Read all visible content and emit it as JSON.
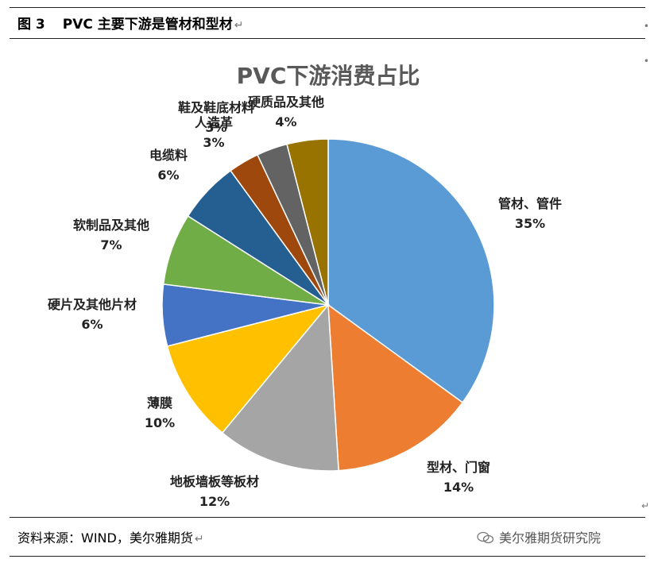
{
  "caption": {
    "figure_number": "图 3",
    "title": "PVC 主要下游是管材和型材",
    "return_mark": "↵"
  },
  "chart_data": {
    "type": "pie",
    "title": "PVC下游消费占比",
    "slices": [
      {
        "label": "管材、管件",
        "value": 35,
        "display": "35%",
        "color": "#5B9BD5"
      },
      {
        "label": "型材、门窗",
        "value": 14,
        "display": "14%",
        "color": "#ED7D31"
      },
      {
        "label": "地板墙板等板材",
        "value": 12,
        "display": "12%",
        "color": "#A5A5A5"
      },
      {
        "label": "薄膜",
        "value": 10,
        "display": "10%",
        "color": "#FFC000"
      },
      {
        "label": "硬片及其他片材",
        "value": 6,
        "display": "6%",
        "color": "#4472C4"
      },
      {
        "label": "软制品及其他",
        "value": 7,
        "display": "7%",
        "color": "#70AD47"
      },
      {
        "label": "电缆料",
        "value": 6,
        "display": "6%",
        "color": "#255E91"
      },
      {
        "label": "人造革",
        "value": 3,
        "display": "3%",
        "color": "#9E480E"
      },
      {
        "label": "鞋及鞋底材料",
        "value": 3,
        "display": "3%",
        "color": "#636363"
      },
      {
        "label": "硬质品及其他",
        "value": 4,
        "display": "4%",
        "color": "#997300"
      }
    ]
  },
  "footer": {
    "source": "资料来源：WIND，美尔雅期货",
    "return_mark": "↵",
    "brand": "美尔雅期货研究院",
    "brand_icon": "wechat-icon"
  }
}
